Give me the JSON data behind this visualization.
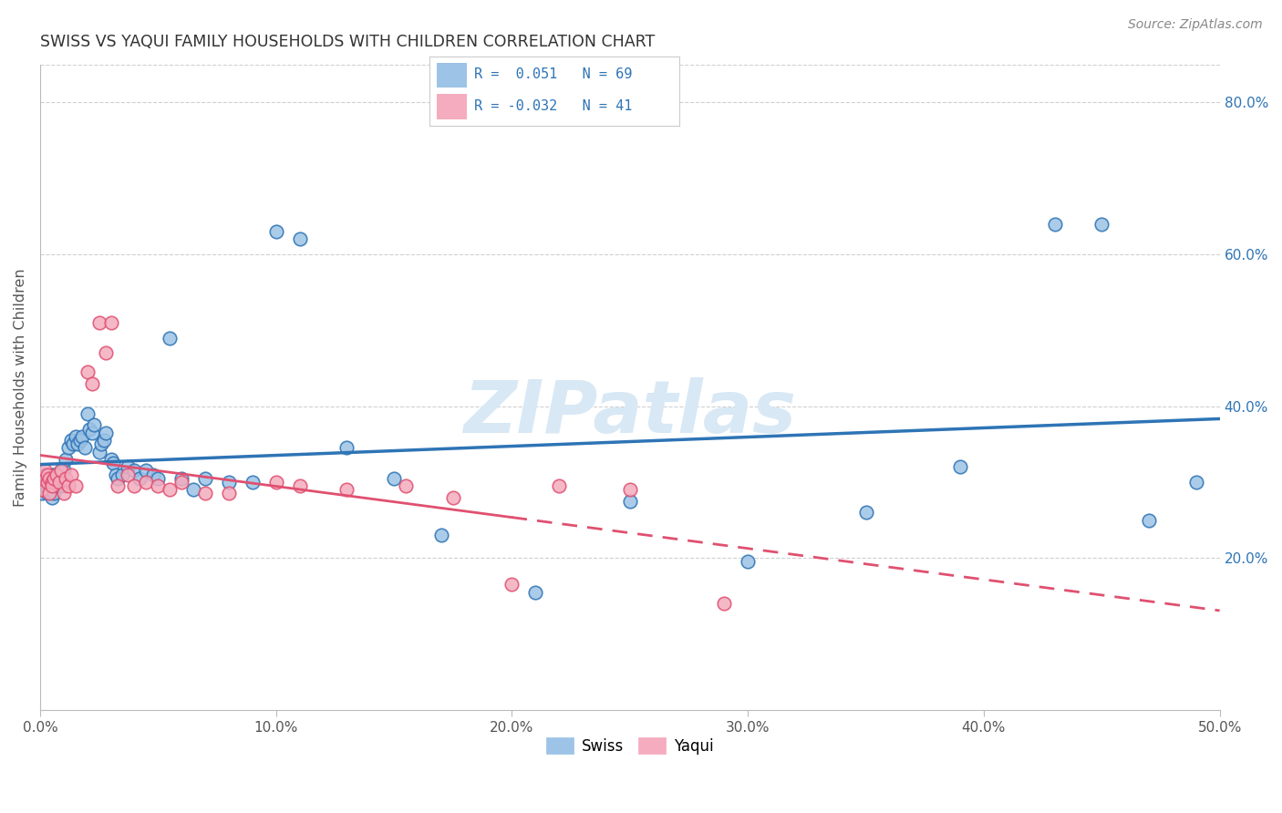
{
  "title": "SWISS VS YAQUI FAMILY HOUSEHOLDS WITH CHILDREN CORRELATION CHART",
  "source": "Source: ZipAtlas.com",
  "ylabel": "Family Households with Children",
  "xlim": [
    0.0,
    0.5
  ],
  "ylim": [
    0.0,
    0.85
  ],
  "xticks": [
    0.0,
    0.1,
    0.2,
    0.3,
    0.4,
    0.5
  ],
  "yticks": [
    0.2,
    0.4,
    0.6,
    0.8
  ],
  "ytick_labels": [
    "20.0%",
    "40.0%",
    "60.0%",
    "80.0%"
  ],
  "xtick_labels": [
    "0.0%",
    "10.0%",
    "20.0%",
    "30.0%",
    "40.0%",
    "50.0%"
  ],
  "swiss_color": "#9dc3e6",
  "yaqui_color": "#f4acbe",
  "swiss_line_color": "#2e74b5",
  "yaqui_line_color": "#e05070",
  "background_color": "#ffffff",
  "grid_color": "#d0d0d0",
  "watermark_text": "ZIPatlas",
  "swiss_R": "0.051",
  "swiss_N": "69",
  "yaqui_R": "-0.032",
  "yaqui_N": "41",
  "swiss_x": [
    0.001,
    0.001,
    0.002,
    0.002,
    0.003,
    0.003,
    0.003,
    0.004,
    0.004,
    0.005,
    0.005,
    0.005,
    0.006,
    0.006,
    0.007,
    0.007,
    0.008,
    0.009,
    0.009,
    0.01,
    0.01,
    0.011,
    0.012,
    0.013,
    0.014,
    0.015,
    0.016,
    0.017,
    0.018,
    0.019,
    0.02,
    0.021,
    0.022,
    0.023,
    0.025,
    0.026,
    0.027,
    0.028,
    0.03,
    0.031,
    0.032,
    0.033,
    0.035,
    0.037,
    0.04,
    0.042,
    0.045,
    0.048,
    0.05,
    0.055,
    0.06,
    0.065,
    0.07,
    0.08,
    0.09,
    0.1,
    0.11,
    0.13,
    0.15,
    0.17,
    0.21,
    0.25,
    0.3,
    0.35,
    0.39,
    0.43,
    0.45,
    0.47,
    0.49
  ],
  "swiss_y": [
    0.295,
    0.285,
    0.3,
    0.31,
    0.29,
    0.305,
    0.285,
    0.295,
    0.305,
    0.28,
    0.31,
    0.295,
    0.285,
    0.31,
    0.295,
    0.305,
    0.295,
    0.305,
    0.315,
    0.295,
    0.315,
    0.33,
    0.345,
    0.355,
    0.35,
    0.36,
    0.35,
    0.355,
    0.36,
    0.345,
    0.39,
    0.37,
    0.365,
    0.375,
    0.34,
    0.35,
    0.355,
    0.365,
    0.33,
    0.325,
    0.31,
    0.305,
    0.31,
    0.32,
    0.315,
    0.305,
    0.315,
    0.31,
    0.305,
    0.49,
    0.305,
    0.29,
    0.305,
    0.3,
    0.3,
    0.63,
    0.62,
    0.345,
    0.305,
    0.23,
    0.155,
    0.275,
    0.195,
    0.26,
    0.32,
    0.64,
    0.64,
    0.25,
    0.3
  ],
  "yaqui_x": [
    0.001,
    0.001,
    0.002,
    0.003,
    0.003,
    0.004,
    0.004,
    0.005,
    0.005,
    0.006,
    0.007,
    0.008,
    0.009,
    0.01,
    0.011,
    0.012,
    0.013,
    0.015,
    0.02,
    0.022,
    0.025,
    0.028,
    0.03,
    0.033,
    0.037,
    0.04,
    0.045,
    0.05,
    0.055,
    0.06,
    0.07,
    0.08,
    0.1,
    0.11,
    0.13,
    0.155,
    0.175,
    0.2,
    0.22,
    0.25,
    0.29
  ],
  "yaqui_y": [
    0.29,
    0.305,
    0.315,
    0.3,
    0.31,
    0.285,
    0.305,
    0.3,
    0.295,
    0.305,
    0.31,
    0.3,
    0.315,
    0.285,
    0.305,
    0.295,
    0.31,
    0.295,
    0.445,
    0.43,
    0.51,
    0.47,
    0.51,
    0.295,
    0.31,
    0.295,
    0.3,
    0.295,
    0.29,
    0.3,
    0.285,
    0.285,
    0.3,
    0.295,
    0.29,
    0.295,
    0.28,
    0.165,
    0.295,
    0.29,
    0.14
  ]
}
